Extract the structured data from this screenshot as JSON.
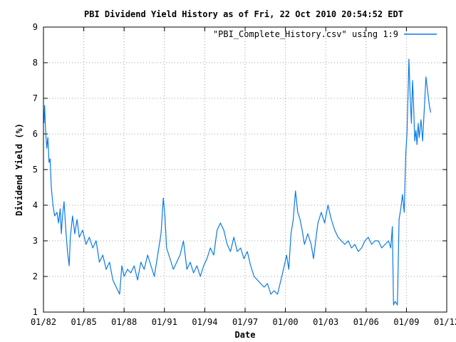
{
  "colors": {
    "series": "#0a7ae6",
    "grid": "#a0a0a0",
    "axis": "#000000"
  },
  "chart_data": {
    "type": "line",
    "title": "PBI Dividend Yield History as of Fri, 22 Oct 2010 20:54:52 EDT",
    "xlabel": "Date",
    "ylabel": "Dividend Yield (%)",
    "x_axis_type": "date",
    "xlim": [
      "1982-01-01",
      "2012-01-01"
    ],
    "ylim": [
      1,
      9
    ],
    "x_ticks": [
      {
        "date": "1982-01-01",
        "label": "01/82"
      },
      {
        "date": "1985-01-01",
        "label": "01/85"
      },
      {
        "date": "1988-01-01",
        "label": "01/88"
      },
      {
        "date": "1991-01-01",
        "label": "01/91"
      },
      {
        "date": "1994-01-01",
        "label": "01/94"
      },
      {
        "date": "1997-01-01",
        "label": "01/97"
      },
      {
        "date": "2000-01-01",
        "label": "01/00"
      },
      {
        "date": "2003-01-01",
        "label": "01/03"
      },
      {
        "date": "2006-01-01",
        "label": "01/06"
      },
      {
        "date": "2009-01-01",
        "label": "01/09"
      },
      {
        "date": "2012-01-01",
        "label": "01/12"
      }
    ],
    "y_ticks": [
      1,
      2,
      3,
      4,
      5,
      6,
      7,
      8,
      9
    ],
    "grid": true,
    "legend_position": "top-right",
    "series": [
      {
        "name": "\"PBI_Complete_History.csv\" using 1:9",
        "points": [
          [
            "1982-01-15",
            6.3
          ],
          [
            "1982-02-01",
            6.8
          ],
          [
            "1982-03-01",
            6.1
          ],
          [
            "1982-04-01",
            5.6
          ],
          [
            "1982-05-01",
            5.9
          ],
          [
            "1982-06-01",
            5.2
          ],
          [
            "1982-07-01",
            5.3
          ],
          [
            "1982-08-01",
            4.5
          ],
          [
            "1982-09-15",
            4.0
          ],
          [
            "1982-11-01",
            3.7
          ],
          [
            "1983-01-01",
            3.8
          ],
          [
            "1983-02-15",
            3.5
          ],
          [
            "1983-04-01",
            3.9
          ],
          [
            "1983-05-01",
            3.2
          ],
          [
            "1983-06-01",
            3.7
          ],
          [
            "1983-07-15",
            4.1
          ],
          [
            "1983-09-01",
            3.3
          ],
          [
            "1983-10-15",
            2.7
          ],
          [
            "1983-12-01",
            2.3
          ],
          [
            "1984-01-01",
            3.1
          ],
          [
            "1984-03-01",
            3.7
          ],
          [
            "1984-05-01",
            3.2
          ],
          [
            "1984-07-01",
            3.6
          ],
          [
            "1984-09-01",
            3.1
          ],
          [
            "1984-12-01",
            3.3
          ],
          [
            "1985-03-01",
            2.9
          ],
          [
            "1985-06-01",
            3.1
          ],
          [
            "1985-09-01",
            2.8
          ],
          [
            "1985-12-01",
            3.0
          ],
          [
            "1986-03-01",
            2.4
          ],
          [
            "1986-06-01",
            2.6
          ],
          [
            "1986-09-01",
            2.2
          ],
          [
            "1986-12-01",
            2.4
          ],
          [
            "1987-03-01",
            1.9
          ],
          [
            "1987-06-01",
            1.7
          ],
          [
            "1987-09-01",
            1.5
          ],
          [
            "1987-11-01",
            2.3
          ],
          [
            "1988-01-01",
            2.0
          ],
          [
            "1988-04-01",
            2.2
          ],
          [
            "1988-07-01",
            2.1
          ],
          [
            "1988-10-01",
            2.3
          ],
          [
            "1989-01-01",
            1.9
          ],
          [
            "1989-04-01",
            2.4
          ],
          [
            "1989-07-01",
            2.2
          ],
          [
            "1989-10-01",
            2.6
          ],
          [
            "1990-01-01",
            2.3
          ],
          [
            "1990-04-01",
            2.0
          ],
          [
            "1990-07-01",
            2.6
          ],
          [
            "1990-10-01",
            3.2
          ],
          [
            "1990-12-01",
            4.2
          ],
          [
            "1991-01-15",
            3.7
          ],
          [
            "1991-03-01",
            2.8
          ],
          [
            "1991-06-01",
            2.5
          ],
          [
            "1991-09-01",
            2.2
          ],
          [
            "1991-12-01",
            2.4
          ],
          [
            "1992-03-01",
            2.6
          ],
          [
            "1992-06-01",
            3.0
          ],
          [
            "1992-09-01",
            2.2
          ],
          [
            "1992-12-01",
            2.4
          ],
          [
            "1993-03-01",
            2.1
          ],
          [
            "1993-06-01",
            2.3
          ],
          [
            "1993-09-01",
            2.0
          ],
          [
            "1993-12-01",
            2.3
          ],
          [
            "1994-03-01",
            2.5
          ],
          [
            "1994-06-01",
            2.8
          ],
          [
            "1994-09-01",
            2.6
          ],
          [
            "1994-12-01",
            3.3
          ],
          [
            "1995-03-01",
            3.5
          ],
          [
            "1995-06-01",
            3.3
          ],
          [
            "1995-09-01",
            2.9
          ],
          [
            "1995-12-01",
            2.7
          ],
          [
            "1996-03-01",
            3.1
          ],
          [
            "1996-06-01",
            2.7
          ],
          [
            "1996-09-01",
            2.8
          ],
          [
            "1996-12-01",
            2.5
          ],
          [
            "1997-03-01",
            2.7
          ],
          [
            "1997-06-01",
            2.3
          ],
          [
            "1997-09-01",
            2.0
          ],
          [
            "1997-12-01",
            1.9
          ],
          [
            "1998-03-01",
            1.8
          ],
          [
            "1998-06-01",
            1.7
          ],
          [
            "1998-09-01",
            1.8
          ],
          [
            "1998-12-01",
            1.5
          ],
          [
            "1999-03-01",
            1.6
          ],
          [
            "1999-06-01",
            1.5
          ],
          [
            "1999-09-01",
            1.9
          ],
          [
            "1999-12-01",
            2.3
          ],
          [
            "2000-02-01",
            2.6
          ],
          [
            "2000-04-01",
            2.2
          ],
          [
            "2000-06-01",
            3.2
          ],
          [
            "2000-08-01",
            3.6
          ],
          [
            "2000-10-01",
            4.4
          ],
          [
            "2000-12-01",
            3.8
          ],
          [
            "2001-02-01",
            3.6
          ],
          [
            "2001-04-01",
            3.3
          ],
          [
            "2001-06-01",
            2.9
          ],
          [
            "2001-09-01",
            3.2
          ],
          [
            "2001-12-01",
            2.9
          ],
          [
            "2002-02-01",
            2.5
          ],
          [
            "2002-04-01",
            3.0
          ],
          [
            "2002-06-01",
            3.5
          ],
          [
            "2002-09-01",
            3.8
          ],
          [
            "2002-12-01",
            3.5
          ],
          [
            "2003-03-01",
            4.0
          ],
          [
            "2003-06-01",
            3.6
          ],
          [
            "2003-09-01",
            3.3
          ],
          [
            "2003-12-01",
            3.1
          ],
          [
            "2004-03-01",
            3.0
          ],
          [
            "2004-06-01",
            2.9
          ],
          [
            "2004-09-01",
            3.0
          ],
          [
            "2004-12-01",
            2.8
          ],
          [
            "2005-03-01",
            2.9
          ],
          [
            "2005-06-01",
            2.7
          ],
          [
            "2005-09-01",
            2.8
          ],
          [
            "2005-12-01",
            3.0
          ],
          [
            "2006-03-01",
            3.1
          ],
          [
            "2006-06-01",
            2.9
          ],
          [
            "2006-09-01",
            3.0
          ],
          [
            "2006-12-01",
            3.0
          ],
          [
            "2007-03-01",
            2.8
          ],
          [
            "2007-06-01",
            2.9
          ],
          [
            "2007-09-01",
            3.0
          ],
          [
            "2007-11-01",
            2.8
          ],
          [
            "2007-12-15",
            3.4
          ],
          [
            "2008-01-15",
            1.2
          ],
          [
            "2008-03-01",
            1.3
          ],
          [
            "2008-05-01",
            1.2
          ],
          [
            "2008-06-15",
            3.6
          ],
          [
            "2008-08-01",
            3.9
          ],
          [
            "2008-09-15",
            4.3
          ],
          [
            "2008-11-01",
            3.8
          ],
          [
            "2008-12-15",
            5.5
          ],
          [
            "2009-01-15",
            6.0
          ],
          [
            "2009-02-15",
            7.2
          ],
          [
            "2009-03-10",
            8.1
          ],
          [
            "2009-04-15",
            7.0
          ],
          [
            "2009-05-15",
            6.3
          ],
          [
            "2009-06-15",
            7.5
          ],
          [
            "2009-07-15",
            6.8
          ],
          [
            "2009-08-15",
            5.8
          ],
          [
            "2009-09-15",
            6.1
          ],
          [
            "2009-10-15",
            5.7
          ],
          [
            "2009-11-15",
            6.3
          ],
          [
            "2009-12-15",
            5.9
          ],
          [
            "2010-02-01",
            6.4
          ],
          [
            "2010-03-15",
            5.8
          ],
          [
            "2010-05-01",
            6.7
          ],
          [
            "2010-06-15",
            7.6
          ],
          [
            "2010-08-01",
            7.2
          ],
          [
            "2010-09-15",
            6.8
          ],
          [
            "2010-10-22",
            6.6
          ]
        ]
      }
    ]
  }
}
